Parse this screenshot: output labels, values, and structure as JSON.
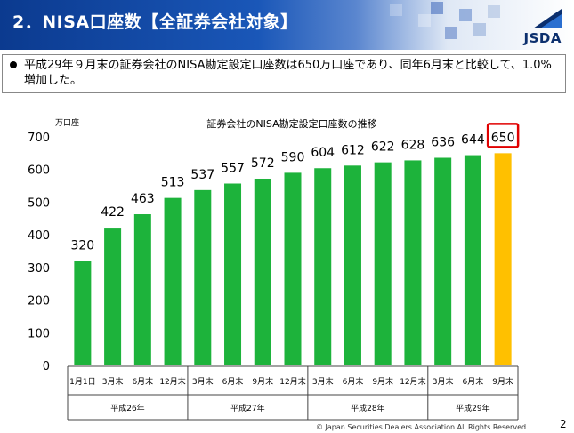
{
  "slide": {
    "title": "2．NISA口座数【全証券会社対象】",
    "logo_text": "JSDA",
    "summary": "平成29年９月末の証券会社のNISA勘定設定口座数は650万口座であり、同年6月末と比較して、1.0%増加した。",
    "footer": "© Japan Securities Dealers Association All Rights Reserved",
    "page_number": "2"
  },
  "colors": {
    "bar": "#1db33b",
    "highlight_bar": "#ffc000",
    "highlight_box": "#e00000"
  },
  "chart_data": {
    "type": "bar",
    "title": "証券会社のNISA勘定設定口座数の推移",
    "ylabel": "万口座",
    "ylim": [
      0,
      700
    ],
    "yticks": [
      0,
      100,
      200,
      300,
      400,
      500,
      600,
      700
    ],
    "categories": [
      "1月1日",
      "3月末",
      "6月末",
      "12月末",
      "3月末",
      "6月末",
      "9月末",
      "12月末",
      "3月末",
      "6月末",
      "9月末",
      "12月末",
      "3月末",
      "6月末",
      "9月末"
    ],
    "values": [
      320,
      422,
      463,
      513,
      537,
      557,
      572,
      590,
      604,
      612,
      622,
      628,
      636,
      644,
      650
    ],
    "highlight_index": 14,
    "groups": [
      {
        "label": "平成26年",
        "span": 4
      },
      {
        "label": "平成27年",
        "span": 4
      },
      {
        "label": "平成28年",
        "span": 4
      },
      {
        "label": "平成29年",
        "span": 3
      }
    ]
  }
}
